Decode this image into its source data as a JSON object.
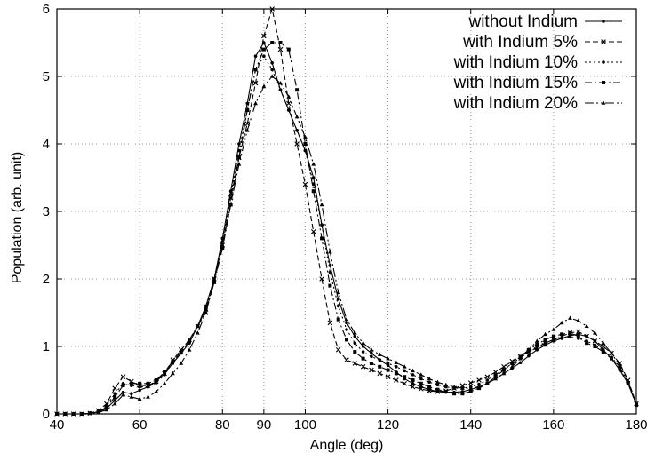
{
  "chart_data": {
    "type": "line",
    "title": "",
    "xlabel": "Angle (deg)",
    "ylabel": "Population (arb. unit)",
    "xlim": [
      40,
      180
    ],
    "ylim": [
      0,
      6
    ],
    "xticks": [
      40,
      60,
      80,
      90,
      100,
      120,
      140,
      160,
      180
    ],
    "yticks": [
      0,
      1,
      2,
      3,
      4,
      5,
      6
    ],
    "grid": true,
    "legend_position": "top-right",
    "series": [
      {
        "name": "without Indium",
        "color": "#000000",
        "dash": "",
        "marker": "dot",
        "x": [
          40,
          42,
          44,
          46,
          48,
          50,
          52,
          54,
          56,
          58,
          60,
          62,
          64,
          66,
          68,
          70,
          72,
          74,
          76,
          78,
          80,
          82,
          84,
          86,
          88,
          90,
          92,
          94,
          96,
          98,
          100,
          102,
          104,
          106,
          108,
          110,
          112,
          114,
          116,
          118,
          120,
          122,
          124,
          126,
          128,
          130,
          132,
          134,
          136,
          138,
          140,
          142,
          144,
          146,
          148,
          150,
          152,
          154,
          156,
          158,
          160,
          162,
          164,
          166,
          168,
          170,
          172,
          174,
          176,
          178,
          180
        ],
        "y": [
          0,
          0,
          0,
          0,
          0.01,
          0.03,
          0.08,
          0.2,
          0.32,
          0.3,
          0.35,
          0.4,
          0.48,
          0.6,
          0.75,
          0.9,
          1.05,
          1.3,
          1.6,
          2.0,
          2.6,
          3.3,
          4.0,
          4.6,
          5.3,
          5.5,
          5.2,
          4.8,
          4.5,
          4.2,
          3.9,
          3.5,
          2.8,
          2.2,
          1.7,
          1.35,
          1.15,
          1.0,
          0.9,
          0.8,
          0.72,
          0.62,
          0.52,
          0.45,
          0.4,
          0.36,
          0.33,
          0.32,
          0.32,
          0.33,
          0.36,
          0.4,
          0.45,
          0.52,
          0.6,
          0.68,
          0.76,
          0.86,
          0.95,
          1.02,
          1.08,
          1.12,
          1.16,
          1.18,
          1.15,
          1.08,
          0.95,
          0.82,
          0.65,
          0.45,
          0.14
        ]
      },
      {
        "name": "with Indium 5%",
        "color": "#000000",
        "dash": "6,3",
        "marker": "x",
        "x": [
          40,
          42,
          44,
          46,
          48,
          50,
          52,
          54,
          56,
          58,
          60,
          62,
          64,
          66,
          68,
          70,
          72,
          74,
          76,
          78,
          80,
          82,
          84,
          86,
          88,
          90,
          92,
          94,
          96,
          98,
          100,
          102,
          104,
          106,
          108,
          110,
          112,
          114,
          116,
          118,
          120,
          122,
          124,
          126,
          128,
          130,
          132,
          134,
          136,
          138,
          140,
          142,
          144,
          146,
          148,
          150,
          152,
          154,
          156,
          158,
          160,
          162,
          164,
          166,
          168,
          170,
          172,
          174,
          176,
          178,
          180
        ],
        "y": [
          0,
          0,
          0,
          0,
          0.01,
          0.05,
          0.15,
          0.38,
          0.55,
          0.48,
          0.42,
          0.42,
          0.48,
          0.6,
          0.8,
          0.95,
          1.1,
          1.3,
          1.5,
          2.0,
          2.5,
          3.2,
          3.8,
          4.3,
          4.9,
          5.6,
          6.0,
          5.4,
          4.6,
          4.0,
          3.4,
          2.7,
          2.0,
          1.35,
          0.95,
          0.8,
          0.75,
          0.7,
          0.65,
          0.6,
          0.55,
          0.5,
          0.45,
          0.4,
          0.37,
          0.34,
          0.33,
          0.34,
          0.38,
          0.42,
          0.46,
          0.5,
          0.55,
          0.62,
          0.7,
          0.78,
          0.85,
          0.92,
          0.98,
          1.05,
          1.1,
          1.15,
          1.2,
          1.22,
          1.15,
          1.08,
          1.0,
          0.9,
          0.75,
          0.5,
          0.15
        ]
      },
      {
        "name": "with Indium 10%",
        "color": "#000000",
        "dash": "2,3",
        "marker": "dot",
        "x": [
          40,
          42,
          44,
          46,
          48,
          50,
          52,
          54,
          56,
          58,
          60,
          62,
          64,
          66,
          68,
          70,
          72,
          74,
          76,
          78,
          80,
          82,
          84,
          86,
          88,
          90,
          92,
          94,
          96,
          98,
          100,
          102,
          104,
          106,
          108,
          110,
          112,
          114,
          116,
          118,
          120,
          122,
          124,
          126,
          128,
          130,
          132,
          134,
          136,
          138,
          140,
          142,
          144,
          146,
          148,
          150,
          152,
          154,
          156,
          158,
          160,
          162,
          164,
          166,
          168,
          170,
          172,
          174,
          176,
          178,
          180
        ],
        "y": [
          0,
          0,
          0,
          0,
          0.01,
          0.04,
          0.12,
          0.3,
          0.45,
          0.42,
          0.4,
          0.4,
          0.46,
          0.58,
          0.76,
          0.92,
          1.08,
          1.3,
          1.55,
          2.0,
          2.55,
          3.25,
          3.9,
          4.5,
          5.1,
          5.3,
          5.1,
          4.8,
          4.5,
          4.2,
          3.9,
          3.4,
          2.8,
          2.1,
          1.6,
          1.25,
          1.05,
          0.92,
          0.85,
          0.8,
          0.75,
          0.7,
          0.64,
          0.58,
          0.52,
          0.47,
          0.43,
          0.4,
          0.38,
          0.38,
          0.4,
          0.44,
          0.5,
          0.58,
          0.66,
          0.75,
          0.83,
          0.92,
          1.0,
          1.06,
          1.1,
          1.12,
          1.14,
          1.12,
          1.08,
          1.02,
          0.94,
          0.84,
          0.7,
          0.45,
          0.14
        ]
      },
      {
        "name": "with Indium 15%",
        "color": "#000000",
        "dash": "8,3,2,3",
        "marker": "square",
        "x": [
          40,
          42,
          44,
          46,
          48,
          50,
          52,
          54,
          56,
          58,
          60,
          62,
          64,
          66,
          68,
          70,
          72,
          74,
          76,
          78,
          80,
          82,
          84,
          86,
          88,
          90,
          92,
          94,
          96,
          98,
          100,
          102,
          104,
          106,
          108,
          110,
          112,
          114,
          116,
          118,
          120,
          122,
          124,
          126,
          128,
          130,
          132,
          134,
          136,
          138,
          140,
          142,
          144,
          146,
          148,
          150,
          152,
          154,
          156,
          158,
          160,
          162,
          164,
          166,
          168,
          170,
          172,
          174,
          176,
          178,
          180
        ],
        "y": [
          0,
          0,
          0,
          0,
          0.01,
          0.03,
          0.1,
          0.25,
          0.42,
          0.45,
          0.45,
          0.45,
          0.5,
          0.62,
          0.78,
          0.92,
          1.08,
          1.3,
          1.55,
          1.95,
          2.45,
          3.1,
          3.8,
          4.5,
          5.1,
          5.4,
          5.5,
          5.5,
          5.4,
          4.8,
          4.0,
          3.3,
          2.6,
          1.9,
          1.4,
          1.1,
          0.92,
          0.82,
          0.75,
          0.7,
          0.65,
          0.6,
          0.55,
          0.5,
          0.45,
          0.4,
          0.36,
          0.33,
          0.3,
          0.3,
          0.33,
          0.38,
          0.45,
          0.55,
          0.65,
          0.75,
          0.85,
          0.95,
          1.03,
          1.1,
          1.15,
          1.18,
          1.2,
          1.15,
          1.05,
          1.0,
          0.92,
          0.82,
          0.68,
          0.45,
          0.13
        ]
      },
      {
        "name": "with Indium 20%",
        "color": "#000000",
        "dash": "10,3,2,3,2,3",
        "marker": "triangle",
        "x": [
          40,
          42,
          44,
          46,
          48,
          50,
          52,
          54,
          56,
          58,
          60,
          62,
          64,
          66,
          68,
          70,
          72,
          74,
          76,
          78,
          80,
          82,
          84,
          86,
          88,
          90,
          92,
          94,
          96,
          98,
          100,
          102,
          104,
          106,
          108,
          110,
          112,
          114,
          116,
          118,
          120,
          122,
          124,
          126,
          128,
          130,
          132,
          134,
          136,
          138,
          140,
          142,
          144,
          146,
          148,
          150,
          152,
          154,
          156,
          158,
          160,
          162,
          164,
          166,
          168,
          170,
          172,
          174,
          176,
          178,
          180
        ],
        "y": [
          0,
          0,
          0,
          0,
          0.01,
          0.02,
          0.06,
          0.15,
          0.28,
          0.25,
          0.22,
          0.25,
          0.33,
          0.45,
          0.6,
          0.75,
          0.95,
          1.2,
          1.5,
          1.95,
          2.5,
          3.1,
          3.7,
          4.2,
          4.6,
          4.85,
          5.0,
          4.9,
          4.7,
          4.4,
          4.1,
          3.7,
          3.1,
          2.4,
          1.8,
          1.4,
          1.2,
          1.05,
          0.95,
          0.88,
          0.82,
          0.76,
          0.7,
          0.64,
          0.58,
          0.52,
          0.47,
          0.43,
          0.4,
          0.38,
          0.38,
          0.4,
          0.45,
          0.52,
          0.6,
          0.7,
          0.82,
          0.95,
          1.08,
          1.18,
          1.25,
          1.35,
          1.42,
          1.38,
          1.3,
          1.2,
          1.05,
          0.9,
          0.72,
          0.48,
          0.14
        ]
      }
    ]
  }
}
